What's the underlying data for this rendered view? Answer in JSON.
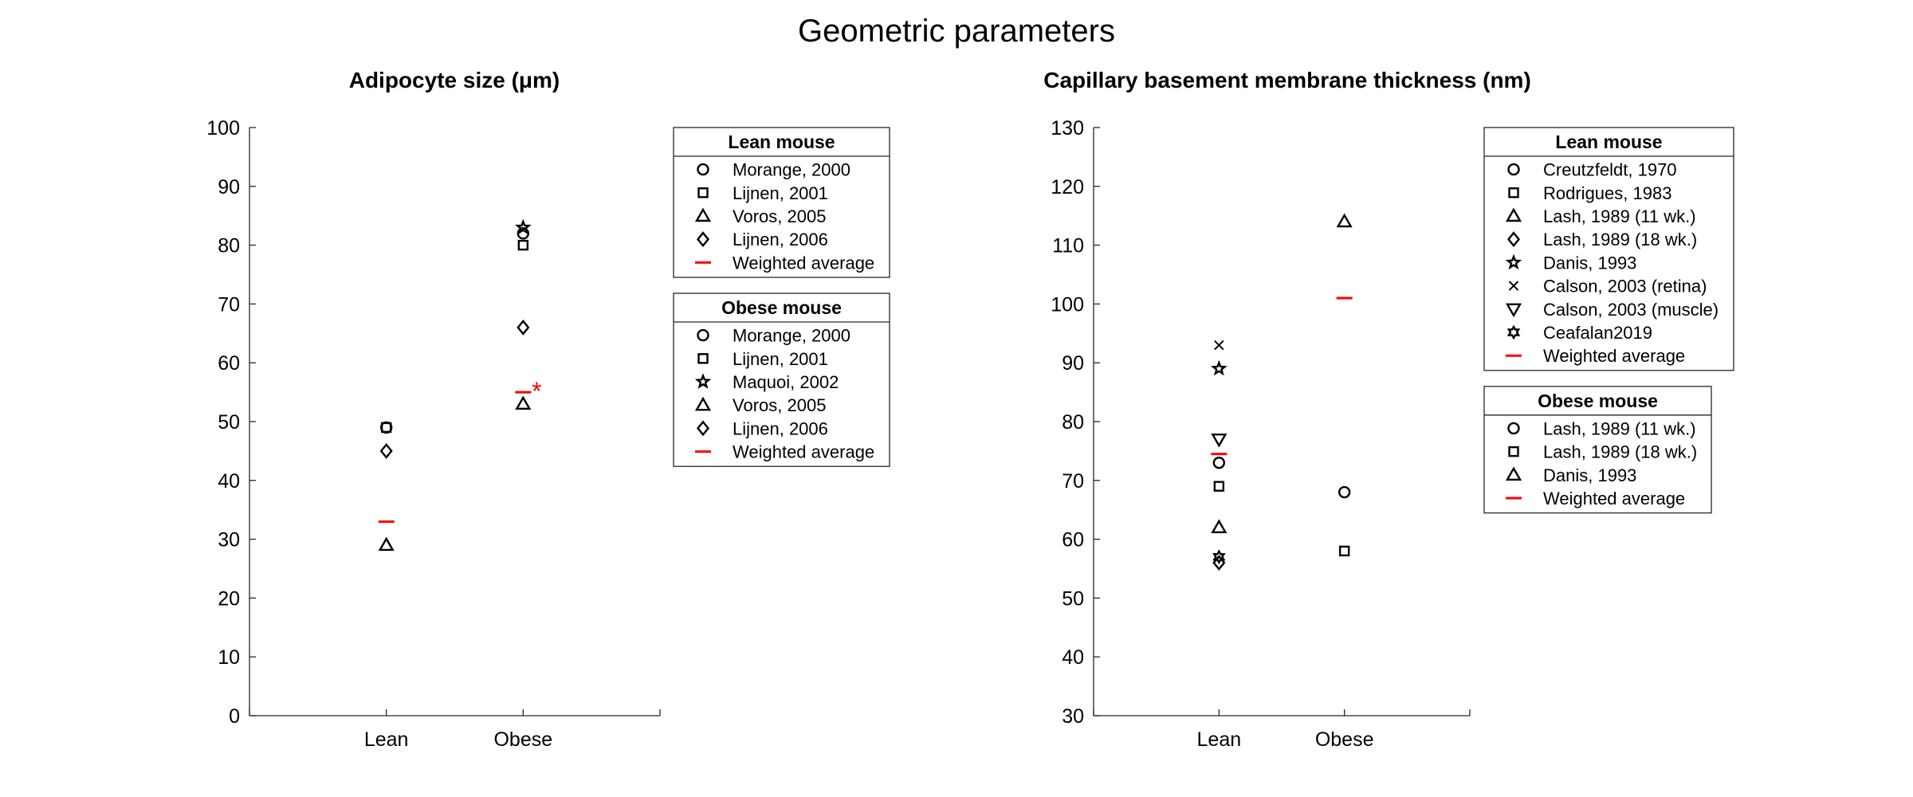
{
  "figure": {
    "title": "Geometric parameters"
  },
  "chart_data": [
    {
      "type": "scatter",
      "title": "Adipocyte size (μm)",
      "xlabel": "",
      "ylabel": "",
      "categories": [
        "Lean",
        "Obese"
      ],
      "ylim": [
        0,
        100
      ],
      "yticks": [
        "0",
        "10",
        "20",
        "30",
        "40",
        "50",
        "60",
        "70",
        "80",
        "90",
        "100"
      ],
      "xlim": [
        0,
        3
      ],
      "grid": false,
      "groups": [
        {
          "title": "Lean mouse",
          "category": "Lean",
          "series": [
            {
              "name": "Morange, 2000",
              "marker": "circle",
              "value": 49
            },
            {
              "name": "Lijnen, 2001",
              "marker": "square",
              "value": 49
            },
            {
              "name": "Voros, 2005",
              "marker": "triangle",
              "value": 29
            },
            {
              "name": "Lijnen, 2006",
              "marker": "diamond",
              "value": 45
            },
            {
              "name": "Weighted average",
              "marker": "dash",
              "value": 33,
              "color": "#ff0000"
            }
          ]
        },
        {
          "title": "Obese mouse",
          "category": "Obese",
          "series": [
            {
              "name": "Morange, 2000",
              "marker": "circle",
              "value": 82
            },
            {
              "name": "Lijnen, 2001",
              "marker": "square",
              "value": 80
            },
            {
              "name": "Maquoi, 2002",
              "marker": "pentagram",
              "value": 83
            },
            {
              "name": "Voros, 2005",
              "marker": "triangle",
              "value": 53
            },
            {
              "name": "Lijnen, 2006",
              "marker": "diamond",
              "value": 66
            },
            {
              "name": "Weighted average",
              "marker": "dash",
              "value": 55,
              "color": "#ff0000"
            }
          ]
        }
      ],
      "annotations": [
        {
          "text": "*",
          "category": "Obese",
          "value": 55,
          "color": "#ff0000"
        }
      ]
    },
    {
      "type": "scatter",
      "title": "Capillary basement membrane thickness (nm)",
      "xlabel": "",
      "ylabel": "",
      "categories": [
        "Lean",
        "Obese"
      ],
      "ylim": [
        30,
        130
      ],
      "yticks": [
        "30",
        "40",
        "50",
        "60",
        "70",
        "80",
        "90",
        "100",
        "110",
        "120",
        "130"
      ],
      "xlim": [
        0,
        3
      ],
      "grid": false,
      "groups": [
        {
          "title": "Lean mouse",
          "category": "Lean",
          "series": [
            {
              "name": "Creutzfeldt, 1970",
              "marker": "circle",
              "value": 73
            },
            {
              "name": "Rodrigues, 1983",
              "marker": "square",
              "value": 69
            },
            {
              "name": "Lash, 1989 (11 wk.)",
              "marker": "triangle",
              "value": 62
            },
            {
              "name": "Lash, 1989 (18 wk.)",
              "marker": "diamond",
              "value": 56
            },
            {
              "name": "Danis, 1993",
              "marker": "pentagram",
              "value": 89
            },
            {
              "name": "Calson, 2003 (retina)",
              "marker": "x",
              "value": 93
            },
            {
              "name": "Calson, 2003 (muscle)",
              "marker": "triangle-down",
              "value": 77
            },
            {
              "name": "Ceafalan2019",
              "marker": "hexagram",
              "value": 57
            },
            {
              "name": "Weighted average",
              "marker": "dash",
              "value": 74.5,
              "color": "#ff0000"
            }
          ]
        },
        {
          "title": "Obese mouse",
          "category": "Obese",
          "series": [
            {
              "name": "Lash, 1989 (11 wk.)",
              "marker": "circle",
              "value": 68
            },
            {
              "name": "Lash, 1989 (18 wk.)",
              "marker": "square",
              "value": 58
            },
            {
              "name": "Danis, 1993",
              "marker": "triangle",
              "value": 114
            },
            {
              "name": "Weighted average",
              "marker": "dash",
              "value": 101,
              "color": "#ff0000"
            }
          ]
        }
      ],
      "annotations": []
    }
  ]
}
